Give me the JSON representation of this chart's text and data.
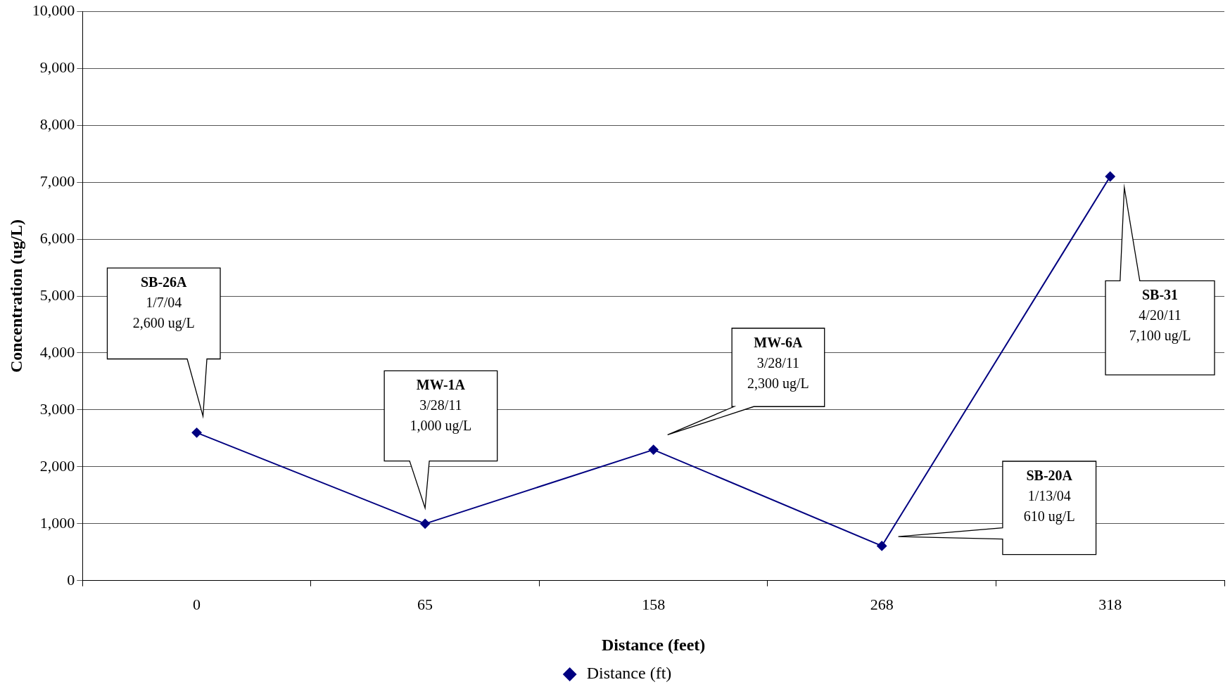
{
  "chart_data": {
    "type": "line",
    "xlabel": "Distance (feet)",
    "ylabel": "Concentration (ug/L)",
    "categories": [
      "0",
      "65",
      "158",
      "268",
      "318"
    ],
    "series": [
      {
        "name": "Distance (ft)",
        "color": "#000080",
        "values": [
          2600,
          1000,
          2300,
          610,
          7100
        ]
      }
    ],
    "ylim": [
      0,
      10000
    ],
    "yticks": [
      0,
      {
        "value": 1000,
        "label": "1,000"
      },
      {
        "value": 2000,
        "label": "2,000"
      },
      {
        "value": 3000,
        "label": "3,000"
      },
      {
        "value": 4000,
        "label": "4,000"
      },
      {
        "value": 5000,
        "label": "5,000"
      },
      {
        "value": 6000,
        "label": "6,000"
      },
      {
        "value": 7000,
        "label": "7,000"
      },
      {
        "value": 8000,
        "label": "8,000"
      },
      {
        "value": 9000,
        "label": "9,000"
      },
      {
        "value": 10000,
        "label": "10,000"
      }
    ],
    "grid": "y",
    "legend": "bottom",
    "marker": "diamond",
    "line_style": "solid",
    "annotations": [
      "SB-26A\n1/7/04\n2,600 ug/L",
      "MW-1A\n3/28/11\n1,000 ug/L",
      "MW-6A\n3/28/11\n2,300 ug/L",
      "SB-20A\n1/13/04\n610 ug/L",
      "SB-31\n4/20/11\n7,100 ug/L"
    ]
  }
}
